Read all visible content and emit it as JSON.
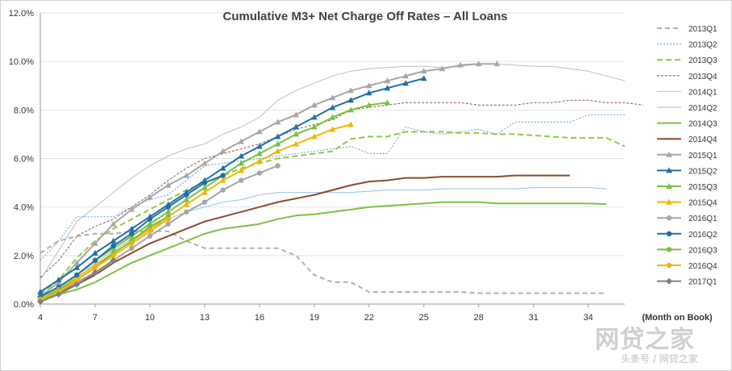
{
  "chart_data": {
    "type": "line",
    "title": "Cumulative M3+ Net Charge Off Rates – All Loans",
    "xlabel": "(Month on Book)",
    "ylabel": "",
    "xlim": [
      4,
      36
    ],
    "ylim": [
      0,
      12
    ],
    "x_ticks": [
      4,
      7,
      10,
      13,
      16,
      19,
      22,
      25,
      28,
      31,
      34
    ],
    "y_ticks": [
      "0.0%",
      "2.0%",
      "4.0%",
      "6.0%",
      "8.0%",
      "10.0%",
      "12.0%"
    ],
    "y_unit": "%",
    "grid": "horizontal",
    "legend_position": "right",
    "series": [
      {
        "name": "2013Q1",
        "color": "#b0b0b0",
        "dash": "6,4",
        "width": 2,
        "marker": "none",
        "x0": 4,
        "values": [
          2.1,
          2.6,
          2.8,
          2.9,
          2.9,
          3.0,
          3.0,
          3.0,
          2.6,
          2.3,
          2.3,
          2.3,
          2.3,
          2.3,
          2.0,
          1.2,
          0.9,
          0.9,
          0.5,
          0.5,
          0.5,
          0.5,
          0.5,
          0.5,
          0.45,
          0.45,
          0.45,
          0.45,
          0.45,
          0.45,
          0.45,
          0.45
        ]
      },
      {
        "name": "2013Q2",
        "color": "#5aa0d8",
        "dash": "2,2",
        "width": 1,
        "marker": "none",
        "x0": 4,
        "values": [
          1.8,
          2.6,
          3.6,
          3.6,
          3.6,
          4.0,
          4.3,
          4.5,
          5.1,
          5.7,
          5.8,
          5.9,
          6.0,
          6.1,
          6.2,
          6.3,
          6.4,
          6.5,
          6.2,
          6.2,
          7.3,
          7.1,
          7.0,
          7.1,
          7.2,
          7.0,
          7.5,
          7.5,
          7.5,
          7.5,
          7.8,
          7.8,
          7.8
        ]
      },
      {
        "name": "2013Q3",
        "color": "#8ccc3c",
        "dash": "7,4",
        "width": 2,
        "marker": "none",
        "x0": 4,
        "values": [
          0.4,
          1.0,
          1.9,
          2.6,
          3.1,
          3.5,
          3.9,
          4.3,
          4.7,
          5.0,
          5.3,
          5.6,
          5.8,
          6.0,
          6.1,
          6.2,
          6.3,
          6.8,
          6.9,
          6.9,
          7.1,
          7.1,
          7.1,
          7.05,
          7.05,
          7.0,
          7.0,
          6.95,
          6.9,
          6.85,
          6.85,
          6.85,
          6.5
        ]
      },
      {
        "name": "2013Q4",
        "color": "#8b5a3c",
        "dash": "3,2",
        "width": 1,
        "marker": "none",
        "x0": 4,
        "values": [
          1.1,
          1.8,
          2.8,
          3.2,
          3.5,
          4.0,
          4.5,
          5.1,
          5.6,
          6.0,
          6.2,
          6.4,
          6.6,
          6.9,
          7.2,
          7.4,
          7.6,
          8.0,
          8.1,
          8.2,
          8.3,
          8.3,
          8.3,
          8.3,
          8.2,
          8.2,
          8.2,
          8.3,
          8.3,
          8.4,
          8.4,
          8.3,
          8.3,
          8.2
        ]
      },
      {
        "name": "2014Q1",
        "color": "#bdbdbd",
        "dash": "",
        "width": 1,
        "marker": "none",
        "x0": 4,
        "values": [
          1.0,
          2.2,
          3.4,
          4.0,
          4.6,
          5.2,
          5.7,
          6.1,
          6.4,
          6.6,
          7.0,
          7.3,
          7.7,
          8.4,
          8.8,
          9.1,
          9.4,
          9.6,
          9.7,
          9.75,
          9.8,
          9.8,
          9.75,
          9.8,
          9.9,
          9.9,
          9.85,
          9.8,
          9.8,
          9.7,
          9.6,
          9.4,
          9.2
        ]
      },
      {
        "name": "2014Q2",
        "color": "#92c5e0",
        "dash": "",
        "width": 1,
        "marker": "none",
        "x0": 4,
        "values": [
          0.3,
          0.7,
          1.2,
          1.7,
          2.2,
          2.7,
          3.1,
          3.5,
          3.8,
          4.0,
          4.2,
          4.3,
          4.5,
          4.6,
          4.6,
          4.6,
          4.6,
          4.6,
          4.65,
          4.7,
          4.7,
          4.7,
          4.75,
          4.75,
          4.75,
          4.75,
          4.75,
          4.8,
          4.8,
          4.8,
          4.8,
          4.75
        ]
      },
      {
        "name": "2014Q3",
        "color": "#7cc242",
        "dash": "",
        "width": 2,
        "marker": "none",
        "x0": 4,
        "values": [
          0.2,
          0.4,
          0.6,
          0.9,
          1.3,
          1.7,
          2.0,
          2.3,
          2.6,
          2.9,
          3.1,
          3.2,
          3.3,
          3.5,
          3.65,
          3.7,
          3.8,
          3.9,
          4.0,
          4.05,
          4.1,
          4.15,
          4.2,
          4.2,
          4.2,
          4.15,
          4.15,
          4.15,
          4.15,
          4.15,
          4.15,
          4.12
        ]
      },
      {
        "name": "2014Q4",
        "color": "#8b4c2a",
        "dash": "",
        "width": 2,
        "marker": "none",
        "x0": 4,
        "values": [
          0.2,
          0.5,
          0.8,
          1.2,
          1.7,
          2.1,
          2.5,
          2.8,
          3.1,
          3.4,
          3.6,
          3.8,
          4.0,
          4.2,
          4.35,
          4.5,
          4.7,
          4.9,
          5.05,
          5.1,
          5.2,
          5.2,
          5.25,
          5.25,
          5.25,
          5.25,
          5.3,
          5.3,
          5.3,
          5.3
        ]
      },
      {
        "name": "2015Q1",
        "color": "#a6a6a6",
        "dash": "",
        "width": 2,
        "marker": "triangle",
        "x0": 4,
        "values": [
          0.3,
          0.9,
          1.7,
          2.5,
          3.3,
          3.9,
          4.4,
          4.9,
          5.3,
          5.8,
          6.3,
          6.7,
          7.1,
          7.5,
          7.8,
          8.2,
          8.5,
          8.8,
          9.0,
          9.2,
          9.4,
          9.6,
          9.7,
          9.85,
          9.9,
          9.9
        ]
      },
      {
        "name": "2015Q2",
        "color": "#1f6fa8",
        "dash": "",
        "width": 2,
        "marker": "triangle",
        "x0": 4,
        "values": [
          0.5,
          1.0,
          1.5,
          2.1,
          2.6,
          3.1,
          3.6,
          4.1,
          4.6,
          5.1,
          5.6,
          6.1,
          6.5,
          6.9,
          7.3,
          7.7,
          8.1,
          8.4,
          8.7,
          8.9,
          9.1,
          9.3
        ]
      },
      {
        "name": "2015Q3",
        "color": "#77c043",
        "dash": "",
        "width": 2,
        "marker": "triangle",
        "x0": 4,
        "values": [
          0.3,
          0.7,
          1.2,
          1.8,
          2.3,
          2.8,
          3.3,
          3.8,
          4.3,
          4.8,
          5.3,
          5.8,
          6.2,
          6.6,
          7.0,
          7.3,
          7.7,
          8.0,
          8.2,
          8.3
        ]
      },
      {
        "name": "2015Q4",
        "color": "#f5b400",
        "dash": "",
        "width": 2,
        "marker": "triangle",
        "x0": 4,
        "values": [
          0.2,
          0.6,
          1.1,
          1.6,
          2.1,
          2.6,
          3.1,
          3.6,
          4.1,
          4.6,
          5.1,
          5.5,
          5.9,
          6.3,
          6.6,
          6.9,
          7.2,
          7.4
        ]
      },
      {
        "name": "2016Q1",
        "color": "#a6a6a6",
        "dash": "",
        "width": 2,
        "marker": "circle",
        "x0": 4,
        "values": [
          0.2,
          0.5,
          0.9,
          1.3,
          1.8,
          2.3,
          2.8,
          3.3,
          3.8,
          4.2,
          4.7,
          5.1,
          5.4,
          5.7
        ]
      },
      {
        "name": "2016Q2",
        "color": "#1f6fa8",
        "dash": "",
        "width": 2,
        "marker": "circle",
        "x0": 4,
        "values": [
          0.3,
          0.7,
          1.2,
          1.8,
          2.4,
          2.9,
          3.5,
          4.0,
          4.5,
          5.0,
          5.3
        ]
      },
      {
        "name": "2016Q3",
        "color": "#77c043",
        "dash": "",
        "width": 2,
        "marker": "circle",
        "x0": 4,
        "values": [
          0.2,
          0.6,
          1.0,
          1.5,
          2.1,
          2.6,
          3.2,
          3.6
        ]
      },
      {
        "name": "2016Q4",
        "color": "#f5b400",
        "dash": "",
        "width": 2,
        "marker": "circle",
        "x0": 4,
        "values": [
          0.2,
          0.5,
          1.0,
          1.5,
          2.0,
          2.5,
          3.0,
          3.5
        ]
      },
      {
        "name": "2017Q1",
        "color": "#7f7f7f",
        "dash": "",
        "width": 2,
        "marker": "diamond",
        "x0": 4,
        "values": [
          0.1,
          0.4,
          0.8,
          1.3,
          1.8
        ]
      }
    ]
  },
  "watermark": {
    "logo_text": "网贷之家",
    "caption": "头条号 / 网贷之家"
  }
}
